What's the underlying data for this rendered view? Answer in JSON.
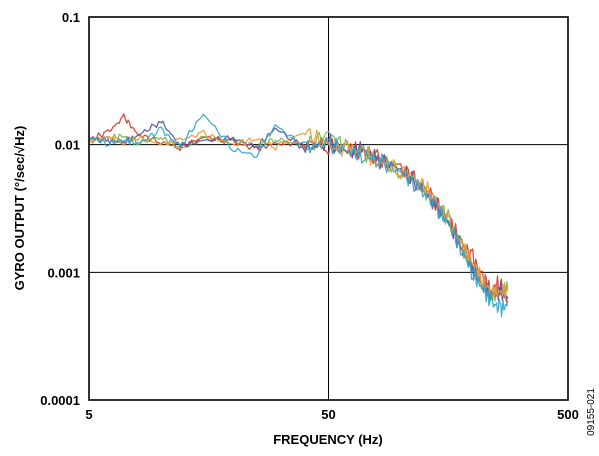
{
  "chart_data": {
    "type": "line",
    "xlabel": "FREQUENCY (Hz)",
    "ylabel": "GYRO OUTPUT (°/sec/√Hz)",
    "xscale": "log",
    "yscale": "log",
    "xlim": [
      5,
      500
    ],
    "ylim": [
      0.0001,
      0.1
    ],
    "x_ticks": [
      {
        "value": 5,
        "label": "5"
      },
      {
        "value": 50,
        "label": "50"
      },
      {
        "value": 500,
        "label": "500"
      }
    ],
    "y_ticks": [
      {
        "value": 0.1,
        "label": "0.1"
      },
      {
        "value": 0.01,
        "label": "0.01"
      },
      {
        "value": 0.001,
        "label": "0.001"
      },
      {
        "value": 0.0001,
        "label": "0.0001"
      }
    ],
    "grid": true,
    "figure_id": "09155-021",
    "series": [
      {
        "color": "#d03a2f",
        "x": [
          5,
          6,
          7,
          8,
          10,
          12,
          15,
          20,
          25,
          30,
          40,
          50,
          60,
          70,
          80,
          100,
          120,
          140,
          160,
          180,
          200,
          220,
          240,
          260,
          280
        ],
        "y": [
          0.011,
          0.0125,
          0.0165,
          0.012,
          0.0105,
          0.0095,
          0.0115,
          0.0105,
          0.0092,
          0.0102,
          0.0105,
          0.0098,
          0.0093,
          0.0087,
          0.0078,
          0.0066,
          0.0051,
          0.0036,
          0.0025,
          0.0017,
          0.0013,
          0.00092,
          0.00072,
          0.00085,
          0.0006
        ]
      },
      {
        "color": "#7ab648",
        "x": [
          5,
          6,
          7,
          8,
          10,
          12,
          15,
          20,
          25,
          30,
          40,
          50,
          60,
          70,
          80,
          100,
          120,
          140,
          160,
          180,
          200,
          220,
          240,
          260,
          280
        ],
        "y": [
          0.0108,
          0.0112,
          0.0118,
          0.0104,
          0.0115,
          0.0092,
          0.0112,
          0.0108,
          0.0098,
          0.0111,
          0.0097,
          0.0123,
          0.0092,
          0.0084,
          0.0081,
          0.0062,
          0.0049,
          0.0035,
          0.0026,
          0.0016,
          0.0011,
          0.00082,
          0.00068,
          0.0007,
          0.00075
        ]
      },
      {
        "color": "#5b4fa3",
        "x": [
          5,
          6,
          7,
          8,
          10,
          12,
          15,
          20,
          25,
          30,
          40,
          50,
          60,
          70,
          80,
          100,
          120,
          140,
          160,
          180,
          200,
          220,
          240,
          260,
          280
        ],
        "y": [
          0.0112,
          0.0108,
          0.0104,
          0.0118,
          0.0152,
          0.0098,
          0.0108,
          0.0112,
          0.0095,
          0.0135,
          0.0092,
          0.0105,
          0.0086,
          0.0093,
          0.0077,
          0.0064,
          0.0047,
          0.0034,
          0.0024,
          0.0015,
          0.00105,
          0.00078,
          0.00066,
          0.00071,
          0.00062
        ]
      },
      {
        "color": "#e89a3a",
        "x": [
          5,
          6,
          7,
          8,
          10,
          12,
          15,
          20,
          25,
          30,
          40,
          50,
          60,
          70,
          80,
          100,
          120,
          140,
          160,
          180,
          200,
          220,
          240,
          260,
          280
        ],
        "y": [
          0.0106,
          0.0115,
          0.0103,
          0.0114,
          0.0101,
          0.0109,
          0.0123,
          0.0099,
          0.0112,
          0.0096,
          0.0128,
          0.0096,
          0.0091,
          0.0089,
          0.0074,
          0.0063,
          0.0052,
          0.0037,
          0.0024,
          0.0016,
          0.0012,
          0.00086,
          0.0007,
          0.00069,
          0.00071
        ]
      },
      {
        "color": "#2fa7cf",
        "x": [
          5,
          6,
          7,
          8,
          10,
          12,
          15,
          20,
          25,
          30,
          40,
          50,
          60,
          70,
          80,
          100,
          120,
          140,
          160,
          180,
          200,
          220,
          240,
          260,
          280
        ],
        "y": [
          0.0114,
          0.0102,
          0.011,
          0.0101,
          0.0132,
          0.0096,
          0.0175,
          0.0092,
          0.0082,
          0.0142,
          0.0095,
          0.0101,
          0.0089,
          0.0082,
          0.0076,
          0.0061,
          0.0045,
          0.0033,
          0.0023,
          0.0015,
          0.00098,
          0.00075,
          0.00058,
          0.00052,
          0.00055
        ]
      }
    ]
  }
}
